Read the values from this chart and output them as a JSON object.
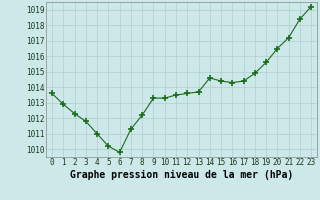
{
  "x": [
    0,
    1,
    2,
    3,
    4,
    5,
    6,
    7,
    8,
    9,
    10,
    11,
    12,
    13,
    14,
    15,
    16,
    17,
    18,
    19,
    20,
    21,
    22,
    23
  ],
  "y": [
    1013.6,
    1012.9,
    1012.3,
    1011.8,
    1011.0,
    1010.2,
    1009.8,
    1011.3,
    1012.2,
    1013.3,
    1013.3,
    1013.5,
    1013.6,
    1013.7,
    1014.6,
    1014.4,
    1014.3,
    1014.4,
    1014.9,
    1015.6,
    1016.5,
    1017.2,
    1018.4,
    1019.2
  ],
  "ylim": [
    1009.5,
    1019.5
  ],
  "yticks": [
    1010,
    1011,
    1012,
    1013,
    1014,
    1015,
    1016,
    1017,
    1018,
    1019
  ],
  "xlim": [
    -0.5,
    23.5
  ],
  "xticks": [
    0,
    1,
    2,
    3,
    4,
    5,
    6,
    7,
    8,
    9,
    10,
    11,
    12,
    13,
    14,
    15,
    16,
    17,
    18,
    19,
    20,
    21,
    22,
    23
  ],
  "xlabel": "Graphe pression niveau de la mer (hPa)",
  "line_color": "#1a6b1a",
  "marker": "+",
  "marker_size": 4,
  "marker_linewidth": 1.2,
  "bg_color": "#cce8e8",
  "grid_color": "#b0cccc",
  "tick_fontsize": 5.5,
  "xlabel_fontsize": 7.0,
  "line_width": 0.8
}
